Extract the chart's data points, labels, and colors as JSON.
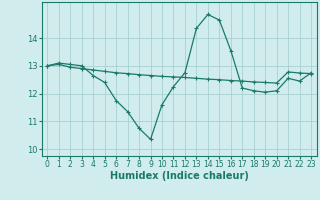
{
  "line1_x": [
    0,
    1,
    2,
    3,
    4,
    5,
    6,
    7,
    8,
    9,
    10,
    11,
    12,
    13,
    14,
    15,
    16,
    17,
    18,
    19,
    20,
    21,
    22,
    23
  ],
  "line1_y": [
    13.0,
    13.1,
    13.05,
    13.0,
    12.65,
    12.4,
    11.75,
    11.35,
    10.75,
    10.35,
    11.6,
    12.25,
    12.75,
    14.35,
    14.85,
    14.65,
    13.55,
    12.2,
    12.1,
    12.05,
    12.1,
    12.55,
    12.45,
    12.75
  ],
  "line2_x": [
    0,
    1,
    2,
    3,
    4,
    5,
    6,
    7,
    8,
    9,
    10,
    11,
    12,
    13,
    14,
    15,
    16,
    17,
    18,
    19,
    20,
    21,
    22,
    23
  ],
  "line2_y": [
    13.0,
    13.05,
    12.95,
    12.9,
    12.85,
    12.8,
    12.75,
    12.72,
    12.68,
    12.65,
    12.62,
    12.6,
    12.58,
    12.55,
    12.52,
    12.5,
    12.47,
    12.45,
    12.42,
    12.4,
    12.38,
    12.78,
    12.74,
    12.72
  ],
  "line_color": "#1a7a6a",
  "bg_color": "#d0ecec",
  "grid_color": "#a8d0d0",
  "xlabel": "Humidex (Indice chaleur)",
  "xlim": [
    -0.5,
    23.5
  ],
  "ylim": [
    9.75,
    15.3
  ],
  "yticks": [
    10,
    11,
    12,
    13,
    14
  ],
  "xticks": [
    0,
    1,
    2,
    3,
    4,
    5,
    6,
    7,
    8,
    9,
    10,
    11,
    12,
    13,
    14,
    15,
    16,
    17,
    18,
    19,
    20,
    21,
    22,
    23
  ],
  "marker": "+",
  "markersize": 3.5,
  "linewidth": 0.9
}
